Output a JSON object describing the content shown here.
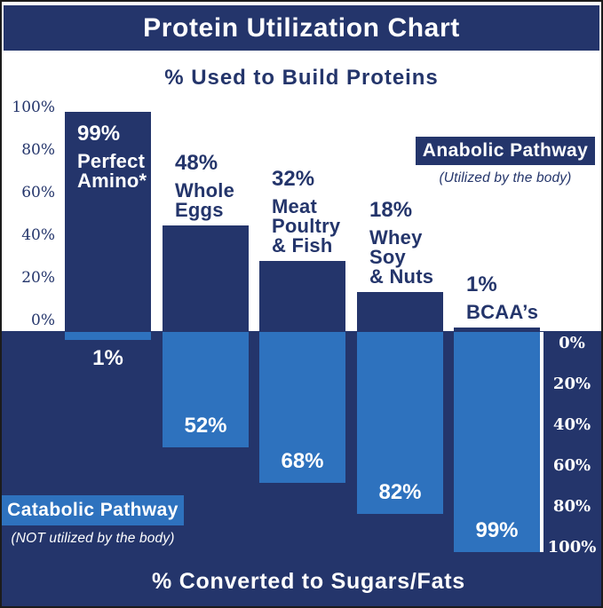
{
  "page": {
    "title": "Protein Utilization Chart",
    "top_heading": "% Used to Build Proteins",
    "bottom_heading": "% Converted to Sugars/Fats"
  },
  "legend": {
    "anabolic_label": "Anabolic Pathway",
    "anabolic_sub": "(Utilized by the body)",
    "catabolic_label": "Catabolic Pathway",
    "catabolic_sub": "(NOT utilized by the body)"
  },
  "axes": {
    "left_ticks": [
      "100%",
      "80%",
      "60%",
      "40%",
      "20%",
      "0%"
    ],
    "right_ticks": [
      "0%",
      "20%",
      "40%",
      "60%",
      "80%",
      "100%"
    ]
  },
  "colors": {
    "navy": "#24356B",
    "blue": "#2E72BE",
    "white": "#FFFFFF"
  },
  "chart_data": {
    "type": "bar",
    "title": "Protein Utilization Chart",
    "categories": [
      "Perfect Amino*",
      "Whole Eggs",
      "Meat Poultry & Fish",
      "Whey Soy & Nuts",
      "BCAA’s"
    ],
    "series": [
      {
        "name": "Anabolic Pathway — % Used to Build Proteins",
        "values": [
          99,
          48,
          32,
          18,
          1
        ]
      },
      {
        "name": "Catabolic Pathway — % Converted to Sugars/Fats",
        "values": [
          1,
          52,
          68,
          82,
          99
        ]
      }
    ],
    "axis_top": {
      "label": "% Used to Build Proteins",
      "range": [
        0,
        100
      ],
      "ticks": [
        0,
        20,
        40,
        60,
        80,
        100
      ]
    },
    "axis_bottom": {
      "label": "% Converted to Sugars/Fats",
      "range": [
        0,
        100
      ],
      "ticks": [
        0,
        20,
        40,
        60,
        80,
        100
      ]
    },
    "legend_position": "anabolic top-right, catabolic bottom-left",
    "grid": false,
    "bars": [
      {
        "slug": "perfect-amino",
        "pct_up": "99%",
        "up": 99,
        "name_lines": [
          "Perfect",
          "Amino*"
        ],
        "pct_down": "1%",
        "down": 1
      },
      {
        "slug": "whole-eggs",
        "pct_up": "48%",
        "up": 48,
        "name_lines": [
          "Whole",
          "Eggs"
        ],
        "pct_down": "52%",
        "down": 52
      },
      {
        "slug": "meat-poultry-fish",
        "pct_up": "32%",
        "up": 32,
        "name_lines": [
          "Meat",
          "Poultry",
          "& Fish"
        ],
        "pct_down": "68%",
        "down": 68
      },
      {
        "slug": "whey-soy-nuts",
        "pct_up": "18%",
        "up": 18,
        "name_lines": [
          "Whey",
          "Soy",
          "& Nuts"
        ],
        "pct_down": "82%",
        "down": 82
      },
      {
        "slug": "bcaas",
        "pct_up": "1%",
        "up": 1,
        "name_lines": [
          "BCAA’s"
        ],
        "pct_down": "99%",
        "down": 99
      }
    ]
  }
}
